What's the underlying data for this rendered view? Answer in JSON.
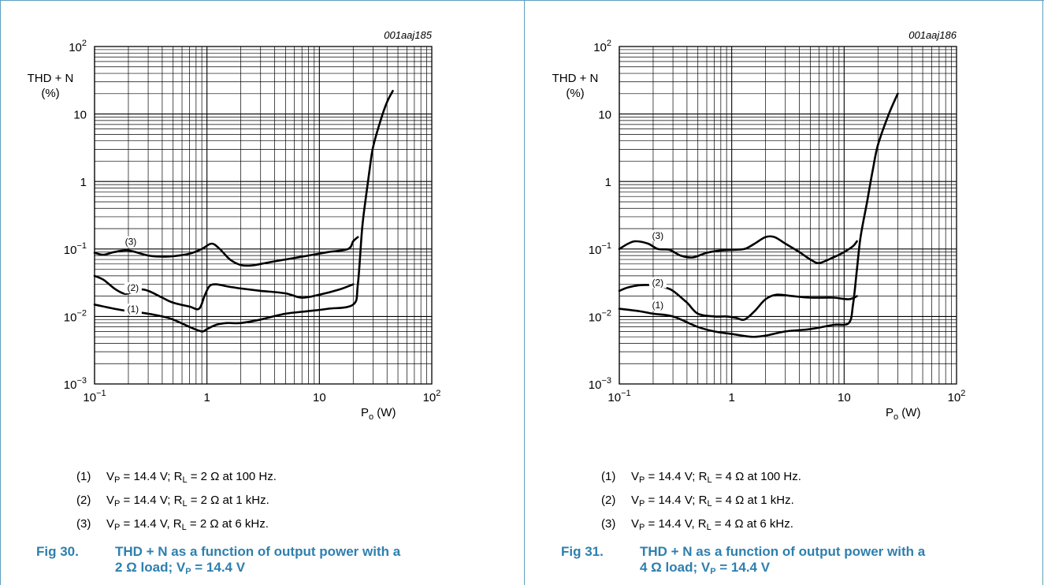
{
  "colors": {
    "accent": "#2e7fae",
    "frame": "#5e9fbf",
    "grid": "#000000",
    "curve": "#000000"
  },
  "chart_data": [
    {
      "type": "line",
      "id": "001aaj185",
      "ylabel_line1": "THD + N",
      "ylabel_line2": "(%)",
      "xlabel_main": "P",
      "xlabel_sub": "o",
      "xlabel_unit": " (W)",
      "x_log": true,
      "y_log": true,
      "xlim": [
        0.1,
        100
      ],
      "ylim": [
        0.001,
        100
      ],
      "grid": true,
      "x_ticks": [
        {
          "base": "10",
          "exp": "−1"
        },
        {
          "base": "1",
          "exp": ""
        },
        {
          "base": "10",
          "exp": ""
        },
        {
          "base": "10",
          "exp": "2"
        }
      ],
      "y_ticks": [
        {
          "base": "10",
          "exp": "−3"
        },
        {
          "base": "10",
          "exp": "−2"
        },
        {
          "base": "10",
          "exp": "−1"
        },
        {
          "base": "1",
          "exp": ""
        },
        {
          "base": "10",
          "exp": ""
        },
        {
          "base": "10",
          "exp": "2"
        }
      ],
      "series": [
        {
          "name": "(1)",
          "label_at": [
            0.22,
            0.0118
          ],
          "x": [
            0.1,
            0.15,
            0.2,
            0.3,
            0.4,
            0.5,
            0.7,
            0.9,
            1.0,
            1.2,
            1.5,
            2,
            3,
            5,
            8,
            12,
            20,
            22,
            24,
            26,
            28,
            30,
            35,
            40,
            45
          ],
          "y": [
            0.015,
            0.013,
            0.012,
            0.011,
            0.01,
            0.009,
            0.007,
            0.006,
            0.0065,
            0.0075,
            0.008,
            0.008,
            0.009,
            0.011,
            0.012,
            0.013,
            0.015,
            0.03,
            0.2,
            0.6,
            1.5,
            3.2,
            8,
            15,
            22
          ]
        },
        {
          "name": "(2)",
          "label_at": [
            0.22,
            0.0245
          ],
          "x": [
            0.1,
            0.12,
            0.15,
            0.18,
            0.2,
            0.25,
            0.3,
            0.4,
            0.5,
            0.7,
            0.85,
            0.95,
            1.05,
            1.2,
            1.5,
            2,
            3,
            5,
            7,
            10,
            15,
            20
          ],
          "y": [
            0.04,
            0.035,
            0.026,
            0.022,
            0.022,
            0.025,
            0.024,
            0.019,
            0.016,
            0.014,
            0.013,
            0.02,
            0.028,
            0.03,
            0.028,
            0.026,
            0.024,
            0.022,
            0.019,
            0.021,
            0.025,
            0.03
          ]
        },
        {
          "name": "(3)",
          "label_at": [
            0.21,
            0.118
          ],
          "x": [
            0.1,
            0.12,
            0.15,
            0.2,
            0.3,
            0.4,
            0.5,
            0.7,
            0.9,
            1.1,
            1.3,
            1.6,
            2,
            2.5,
            3.5,
            5,
            8,
            12,
            18,
            20,
            22
          ],
          "y": [
            0.088,
            0.082,
            0.09,
            0.095,
            0.08,
            0.077,
            0.078,
            0.085,
            0.1,
            0.12,
            0.1,
            0.07,
            0.058,
            0.057,
            0.063,
            0.07,
            0.08,
            0.09,
            0.1,
            0.13,
            0.15
          ]
        }
      ]
    },
    {
      "type": "line",
      "id": "001aaj186",
      "ylabel_line1": "THD + N",
      "ylabel_line2": "(%)",
      "xlabel_main": "P",
      "xlabel_sub": "o",
      "xlabel_unit": " (W)",
      "x_log": true,
      "y_log": true,
      "xlim": [
        0.1,
        100
      ],
      "ylim": [
        0.001,
        100
      ],
      "grid": true,
      "x_ticks": [
        {
          "base": "10",
          "exp": "−1"
        },
        {
          "base": "1",
          "exp": ""
        },
        {
          "base": "10",
          "exp": ""
        },
        {
          "base": "10",
          "exp": "2"
        }
      ],
      "y_ticks": [
        {
          "base": "10",
          "exp": "−3"
        },
        {
          "base": "10",
          "exp": "−2"
        },
        {
          "base": "10",
          "exp": "−1"
        },
        {
          "base": "1",
          "exp": ""
        },
        {
          "base": "10",
          "exp": ""
        },
        {
          "base": "10",
          "exp": "2"
        }
      ],
      "series": [
        {
          "name": "(1)",
          "label_at": [
            0.22,
            0.0135
          ],
          "x": [
            0.1,
            0.15,
            0.2,
            0.3,
            0.5,
            0.7,
            1.0,
            1.5,
            2,
            3,
            5,
            8,
            11,
            12,
            13,
            14,
            16,
            18,
            20,
            25,
            30
          ],
          "y": [
            0.013,
            0.012,
            0.011,
            0.01,
            0.007,
            0.006,
            0.0055,
            0.005,
            0.0052,
            0.006,
            0.0065,
            0.0075,
            0.008,
            0.015,
            0.05,
            0.15,
            0.5,
            1.5,
            3.5,
            10,
            20
          ]
        },
        {
          "name": "(2)",
          "label_at": [
            0.22,
            0.0292
          ],
          "x": [
            0.1,
            0.12,
            0.15,
            0.2,
            0.25,
            0.3,
            0.4,
            0.5,
            0.7,
            0.9,
            1.1,
            1.3,
            1.6,
            2,
            2.5,
            3.5,
            5,
            8,
            11,
            13
          ],
          "y": [
            0.024,
            0.027,
            0.029,
            0.029,
            0.027,
            0.024,
            0.016,
            0.011,
            0.01,
            0.01,
            0.0095,
            0.009,
            0.012,
            0.018,
            0.021,
            0.02,
            0.019,
            0.019,
            0.018,
            0.02
          ]
        },
        {
          "name": "(3)",
          "label_at": [
            0.22,
            0.145
          ],
          "x": [
            0.1,
            0.12,
            0.14,
            0.18,
            0.22,
            0.28,
            0.35,
            0.45,
            0.6,
            0.8,
            1.0,
            1.3,
            1.6,
            2.0,
            2.4,
            3,
            4,
            5,
            6,
            8,
            10,
            12,
            13
          ],
          "y": [
            0.1,
            0.12,
            0.13,
            0.12,
            0.1,
            0.097,
            0.08,
            0.075,
            0.088,
            0.095,
            0.097,
            0.1,
            0.12,
            0.15,
            0.15,
            0.12,
            0.09,
            0.07,
            0.062,
            0.075,
            0.09,
            0.11,
            0.13
          ]
        }
      ]
    }
  ],
  "panels": [
    {
      "notes": [
        {
          "num": "(1)",
          "a": "V",
          "a_sub": "P",
          "b": " = 14.4 V; R",
          "b_sub": "L",
          "c": " = 2 Ω at 100 Hz."
        },
        {
          "num": "(2)",
          "a": "V",
          "a_sub": "P",
          "b": " = 14.4 V; R",
          "b_sub": "L",
          "c": " = 2 Ω at 1 kHz."
        },
        {
          "num": "(3)",
          "a": "V",
          "a_sub": "P",
          "b": " = 14.4 V, R",
          "b_sub": "L",
          "c": " = 2 Ω at 6 kHz."
        }
      ],
      "caption": {
        "fig": "Fig 30.",
        "line1": "THD + N as a function of output power with a",
        "line2a": "2 Ω load; V",
        "line2_sub": "P",
        "line2b": " = 14.4 V"
      }
    },
    {
      "notes": [
        {
          "num": "(1)",
          "a": "V",
          "a_sub": "P",
          "b": " = 14.4 V; R",
          "b_sub": "L",
          "c": " = 4 Ω at 100 Hz."
        },
        {
          "num": "(2)",
          "a": "V",
          "a_sub": "P",
          "b": " = 14.4 V; R",
          "b_sub": "L",
          "c": " = 4 Ω at 1 kHz."
        },
        {
          "num": "(3)",
          "a": "V",
          "a_sub": "P",
          "b": " = 14.4 V, R",
          "b_sub": "L",
          "c": " = 4 Ω at 6 kHz."
        }
      ],
      "caption": {
        "fig": "Fig 31.",
        "line1": "THD + N as a function of output power with a",
        "line2a": "4 Ω load; V",
        "line2_sub": "P",
        "line2b": " = 14.4 V"
      }
    }
  ]
}
